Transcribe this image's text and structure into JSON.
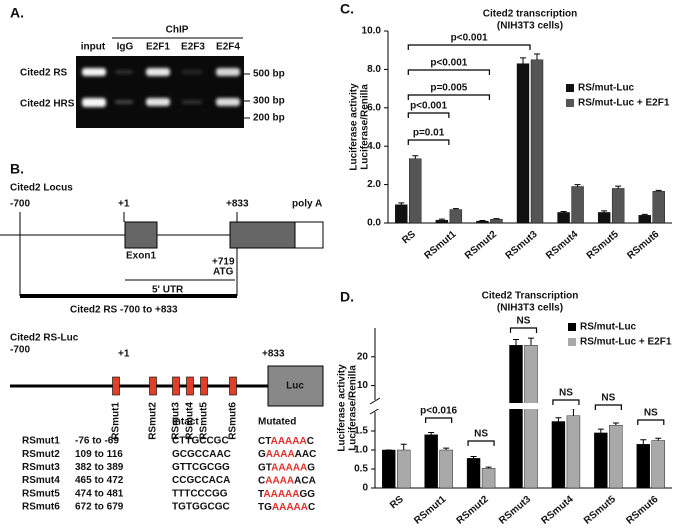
{
  "panel_labels": [
    "A.",
    "B.",
    "C.",
    "D."
  ],
  "gel": {
    "group_label": "ChIP",
    "lanes": [
      "input",
      "IgG",
      "E2F1",
      "E2F3",
      "E2F4"
    ],
    "rows": [
      "Cited2 RS",
      "Cited2 HRS"
    ],
    "markers": [
      "500 bp",
      "300 bp",
      "200 bp"
    ]
  },
  "locus": {
    "title": "Cited2 Locus",
    "start": "-700",
    "tss": "+1",
    "end": "+833",
    "polya": "poly A",
    "exon": "Exon1",
    "atg_pos": "+719",
    "atg": "ATG",
    "utr": "5' UTR",
    "region": "Cited2 RS -700 to +833"
  },
  "construct": {
    "title": "Cited2 RS-Luc",
    "start": "-700",
    "tss": "+1",
    "end": "+833",
    "reporter": "Luc",
    "sites": [
      "RSmut1",
      "RSmut2",
      "RSmut3",
      "RSmut4",
      "RSmut5",
      "RSmut6"
    ]
  },
  "table": {
    "headers": [
      "Intact",
      "Mutated"
    ],
    "rows": [
      [
        "RSmut1",
        "-76 to -69",
        "CTTGCCGC",
        [
          "CT",
          "AAAAA",
          "C"
        ]
      ],
      [
        "RSmut2",
        "109 to 116",
        "GCGCCAAC",
        [
          "G",
          "AAAA",
          "AAC"
        ]
      ],
      [
        "RSmut3",
        "382 to 389",
        "GTTCGCGG",
        [
          "GT",
          "AAAAA",
          "G"
        ]
      ],
      [
        "RSmut4",
        "465 to 472",
        "CCGCCACA",
        [
          "C",
          "AAAA",
          "ACA"
        ]
      ],
      [
        "RSmut5",
        "474 to 481",
        "TTTCCCGG",
        [
          "T",
          "AAAAA",
          "GG"
        ]
      ],
      [
        "RSmut6",
        "672 to 679",
        "TGTGGCGC",
        [
          "TG",
          "AAAAA",
          "C"
        ]
      ]
    ]
  },
  "chart_data": [
    {
      "type": "bar",
      "title": "Cited2 transcription",
      "subtitle": "(NIH3T3 cells)",
      "y_label": "Luciferase activity",
      "y_sublabel": "Luciferase/Renilla",
      "categories": [
        "RS",
        "RSmut1",
        "RSmut2",
        "RSmut3",
        "RSmut4",
        "RSmut5",
        "RSmut6"
      ],
      "series": [
        {
          "name": "RS/mut-Luc",
          "color": "#111111",
          "values": [
            0.95,
            0.15,
            0.1,
            8.3,
            0.55,
            0.55,
            0.4
          ],
          "errors": [
            0.1,
            0.05,
            0.03,
            0.3,
            0.05,
            0.08,
            0.05
          ]
        },
        {
          "name": "RS/mut-Luc + E2F1",
          "color": "#555555",
          "values": [
            3.35,
            0.7,
            0.2,
            8.5,
            1.9,
            1.8,
            1.65
          ],
          "errors": [
            0.15,
            0.05,
            0.03,
            0.3,
            0.1,
            0.12,
            0.05
          ]
        }
      ],
      "ylim": [
        0,
        10
      ],
      "yticks": [
        {
          "value": 0,
          "label": "0.0"
        },
        {
          "value": 2,
          "label": "2.0"
        },
        {
          "value": 4,
          "label": "4.0"
        },
        {
          "value": 6,
          "label": "6.0"
        },
        {
          "value": 8,
          "label": "8.0"
        },
        {
          "value": 10,
          "label": "10.0"
        }
      ],
      "annotations": [
        "p=0.01",
        "p<0.001",
        "p=0.005",
        "p<0.001",
        "p<0.001"
      ]
    },
    {
      "type": "bar",
      "title": "Cited2 Transcription",
      "subtitle": "(NIH3T3 cells)",
      "y_label": "Luciferase activity",
      "y_sublabel": "Luciferase/Renilla",
      "categories": [
        "RS",
        "RSmut1",
        "RSmut2",
        "RSmut3",
        "RSmut4",
        "RSmut5",
        "RSmut6"
      ],
      "series": [
        {
          "name": "RS/mut-Luc",
          "color": "#000000",
          "values": [
            1.0,
            1.4,
            0.78,
            24,
            1.75,
            1.45,
            1.15
          ],
          "errors": [
            0,
            0.06,
            0.05,
            2,
            0.1,
            0.1,
            0.12
          ]
        },
        {
          "name": "RS/mut-Luc + E2F1",
          "color": "#a9a9a9",
          "values": [
            1.0,
            1.0,
            0.52,
            24,
            1.9,
            1.65,
            1.25
          ],
          "errors": [
            0.15,
            0.05,
            0.03,
            2.5,
            0.12,
            0.06,
            0.06
          ]
        }
      ],
      "ylim": [
        0,
        30
      ],
      "ybreak": [
        2,
        5
      ],
      "yticks": [
        0,
        0.5,
        {
          "value": 1,
          "label": "1.0"
        },
        1.5,
        10,
        20
      ],
      "annotations": [
        "p<0.016",
        "NS",
        "NS",
        "NS",
        "NS",
        "NS"
      ]
    }
  ]
}
